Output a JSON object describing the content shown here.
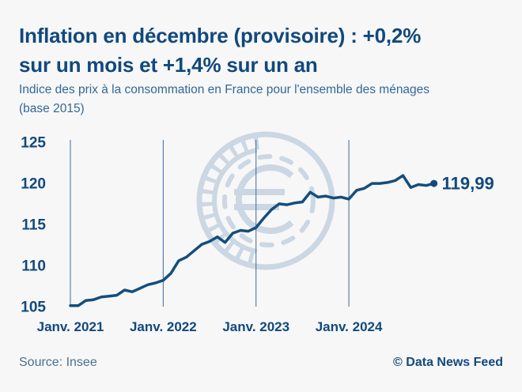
{
  "header": {
    "title_lines": [
      "Inflation en décembre (provisoire) : +0,2%",
      "sur un mois et +1,4% sur un an"
    ],
    "subtitle_lines": [
      "Indice des prix à la consommation en France pour l'ensemble des ménages",
      "(base 2015)"
    ]
  },
  "chart_data": {
    "type": "line",
    "title": "Inflation en décembre (provisoire) : +0,2% sur un mois et +1,4% sur un an",
    "subtitle": "Indice des prix à la consommation en France pour l'ensemble des ménages (base 2015)",
    "x_start": "2021-01",
    "x_freq": "monthly",
    "x_tick_labels": [
      "Janv. 2021",
      "Janv. 2022",
      "Janv. 2023",
      "Janv. 2024"
    ],
    "y_ticks": [
      105,
      110,
      115,
      120,
      125
    ],
    "ylim": [
      105,
      125.3
    ],
    "grid": "vertical-only",
    "series": [
      {
        "name": "Indice des prix à la consommation (base 2015)",
        "values": [
          105.12,
          105.12,
          105.75,
          105.85,
          106.17,
          106.28,
          106.38,
          107.02,
          106.81,
          107.23,
          107.66,
          107.88,
          108.2,
          109.06,
          110.59,
          111.03,
          111.81,
          112.59,
          112.93,
          113.49,
          112.81,
          113.94,
          114.28,
          114.17,
          114.62,
          115.77,
          116.81,
          117.51,
          117.39,
          117.62,
          117.74,
          118.92,
          118.33,
          118.45,
          118.21,
          118.33,
          118.09,
          119.15,
          119.39,
          119.99,
          119.99,
          120.11,
          120.35,
          120.95,
          119.5,
          119.86,
          119.74,
          119.99
        ]
      }
    ],
    "end_label": "119,99",
    "last_value": 119.99,
    "colors": {
      "line": "#144e7c",
      "accent_text": "#11497c",
      "subtitle_text": "#336895",
      "source_text": "#47708f",
      "gridline": "#3f6b93",
      "watermark": "#cbd7e3",
      "background": "#f7f7f8"
    }
  },
  "watermark": {
    "icon": "euro-coin-icon"
  },
  "footer": {
    "source": "Source: Insee",
    "credit": "© Data News Feed"
  }
}
